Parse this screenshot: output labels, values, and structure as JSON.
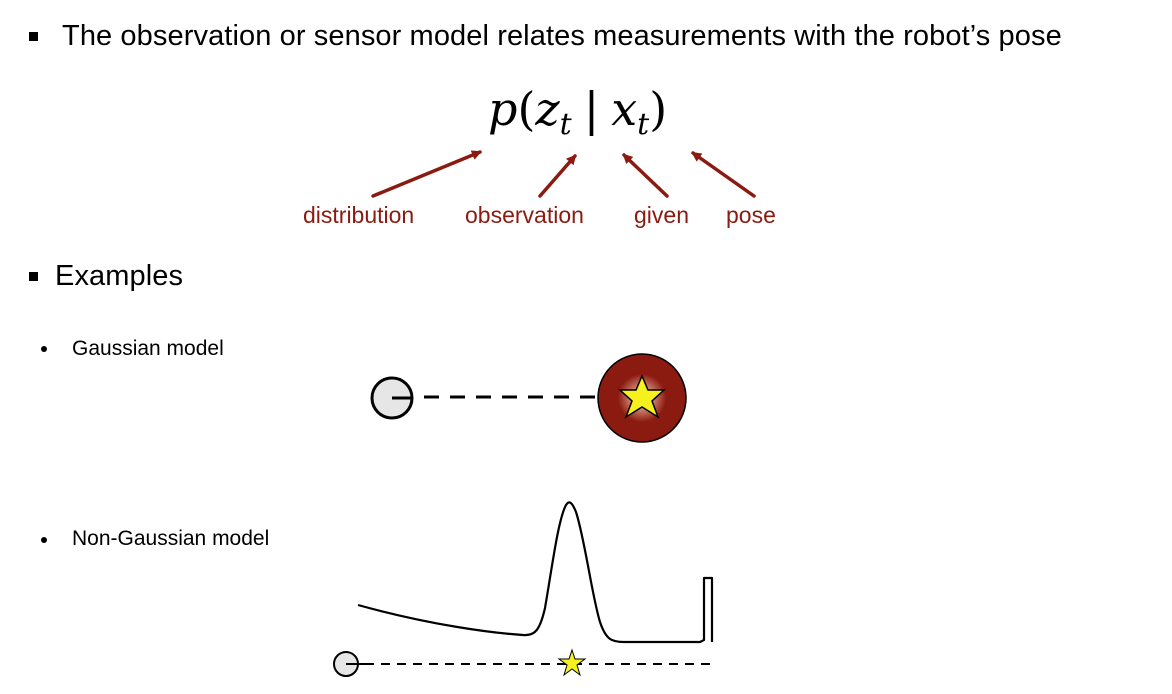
{
  "slide": {
    "heading": "The observation or sensor model relates measurements with the robot’s pose",
    "formula": {
      "p": "p",
      "open": "(",
      "z": "z",
      "z_sub": "t",
      "bar": "|",
      "x": "x",
      "x_sub": "t",
      "close": ")"
    },
    "annotations": [
      "distribution",
      "observation",
      "given",
      "pose"
    ],
    "examples_heading": "Examples",
    "examples": [
      {
        "label": "Gaussian model"
      },
      {
        "label": "Non-Gaussian model"
      }
    ]
  },
  "colors": {
    "annotation": "#8b1a10",
    "gaussian_blob": "#8b1a10",
    "star_fill": "#f5f01e",
    "robot_fill": "#e6e6e6"
  },
  "icons": [
    "robot-circle-icon",
    "landmark-star-icon"
  ]
}
